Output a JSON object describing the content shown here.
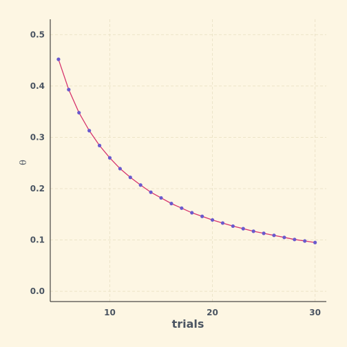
{
  "chart_data": {
    "type": "line",
    "title": "",
    "xlabel": "trials",
    "ylabel": "θ",
    "xlim": [
      4.2,
      31.1
    ],
    "ylim": [
      -0.02,
      0.53
    ],
    "xticks": [
      10,
      20,
      30
    ],
    "yticks": [
      0.0,
      0.1,
      0.2,
      0.3,
      0.4,
      0.5
    ],
    "xtick_labels": [
      "10",
      "20",
      "30"
    ],
    "ytick_labels": [
      "0.0",
      "0.1",
      "0.2",
      "0.3",
      "0.4",
      "0.5"
    ],
    "grid": true,
    "line_color": "#d6336c",
    "marker_color": "#6a5acd",
    "series": [
      {
        "x": [
          5,
          6,
          7,
          8,
          9,
          10,
          11,
          12,
          13,
          14,
          15,
          16,
          17,
          18,
          19,
          20,
          21,
          22,
          23,
          24,
          25,
          26,
          27,
          28,
          29,
          30
        ],
        "y": [
          0.452,
          0.393,
          0.348,
          0.313,
          0.284,
          0.26,
          0.239,
          0.222,
          0.207,
          0.193,
          0.182,
          0.171,
          0.162,
          0.153,
          0.146,
          0.139,
          0.133,
          0.127,
          0.122,
          0.117,
          0.113,
          0.109,
          0.105,
          0.101,
          0.098,
          0.095
        ]
      }
    ]
  }
}
